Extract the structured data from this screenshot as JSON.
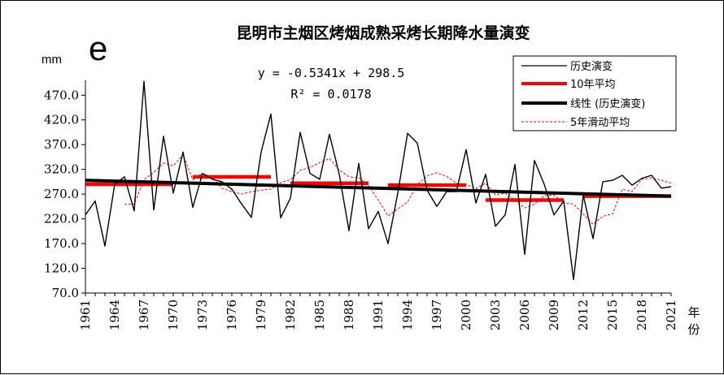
{
  "chart_data": {
    "type": "line",
    "title": "昆明市主烟区烤烟成熟采烤长期降水量演变",
    "panel_label": "e",
    "ylabel": "mm",
    "xlabel": "年份",
    "ylim": [
      70,
      500
    ],
    "yticks": [
      "470.0",
      "420.0",
      "370.0",
      "320.0",
      "270.0",
      "220.0",
      "170.0",
      "120.0",
      "70.0"
    ],
    "ytick_values": [
      470,
      420,
      370,
      320,
      270,
      220,
      170,
      120,
      70
    ],
    "xlim": [
      1961,
      2021
    ],
    "xticks": [
      "1961",
      "1964",
      "1967",
      "1970",
      "1973",
      "1976",
      "1979",
      "1982",
      "1985",
      "1988",
      "1991",
      "1994",
      "1997",
      "2000",
      "2003",
      "2006",
      "2009",
      "2012",
      "2015",
      "2018",
      "2021"
    ],
    "xtick_values": [
      1961,
      1964,
      1967,
      1970,
      1973,
      1976,
      1979,
      1982,
      1985,
      1988,
      1991,
      1994,
      1997,
      2000,
      2003,
      2006,
      2009,
      2012,
      2015,
      2018,
      2021
    ],
    "equation": "y = -0.5341x + 298.5",
    "r_squared": "R² = 0.0178",
    "trend": {
      "slope": -0.5341,
      "intercept": 298.5
    },
    "legend": {
      "history": "历史演变",
      "decade": "10年平均",
      "linear": "线性 (历史演变)",
      "moving": "5年滑动平均"
    },
    "series": [
      {
        "name": "历史演变",
        "color": "#000000",
        "x": [
          1961,
          1962,
          1963,
          1964,
          1965,
          1966,
          1967,
          1968,
          1969,
          1970,
          1971,
          1972,
          1973,
          1974,
          1975,
          1976,
          1977,
          1978,
          1979,
          1980,
          1981,
          1982,
          1983,
          1984,
          1985,
          1986,
          1987,
          1988,
          1989,
          1990,
          1991,
          1992,
          1993,
          1994,
          1995,
          1996,
          1997,
          1998,
          1999,
          2000,
          2001,
          2002,
          2003,
          2004,
          2005,
          2006,
          2007,
          2008,
          2009,
          2010,
          2011,
          2012,
          2013,
          2014,
          2015,
          2016,
          2017,
          2018,
          2019,
          2020,
          2021
        ],
        "values": [
          228,
          256,
          165,
          290,
          305,
          236,
          498,
          238,
          387,
          272,
          355,
          243,
          312,
          300,
          295,
          280,
          250,
          223,
          355,
          432,
          222,
          262,
          395,
          312,
          300,
          391,
          310,
          196,
          332,
          200,
          235,
          170,
          272,
          393,
          373,
          278,
          245,
          275,
          275,
          360,
          252,
          310,
          205,
          228,
          330,
          148,
          338,
          290,
          228,
          256,
          97,
          268,
          180,
          295,
          298,
          308,
          288,
          302,
          308,
          282,
          285
        ]
      },
      {
        "name": "5年滑动平均",
        "color": "#ff0000",
        "x": [
          1965,
          1966,
          1967,
          1968,
          1969,
          1970,
          1971,
          1972,
          1973,
          1974,
          1975,
          1976,
          1977,
          1978,
          1979,
          1980,
          1981,
          1982,
          1983,
          1984,
          1985,
          1986,
          1987,
          1988,
          1989,
          1990,
          1991,
          1992,
          1993,
          1994,
          1995,
          1996,
          1997,
          1998,
          1999,
          2000,
          2001,
          2002,
          2003,
          2004,
          2005,
          2006,
          2007,
          2008,
          2009,
          2010,
          2011,
          2012,
          2013,
          2014,
          2015,
          2016,
          2017,
          2018,
          2019,
          2020,
          2021
        ],
        "values": [
          249,
          250,
          299,
          314,
          333,
          327,
          350,
          299,
          312,
          304,
          282,
          275,
          270,
          275,
          278,
          280,
          293,
          299,
          318,
          324,
          334,
          342,
          319,
          305,
          303,
          287,
          258,
          226,
          240,
          254,
          289,
          307,
          313,
          306,
          292,
          290,
          281,
          292,
          268,
          272,
          258,
          242,
          250,
          267,
          268,
          252,
          250,
          230,
          209,
          225,
          230,
          280,
          275,
          300,
          303,
          298,
          292
        ]
      }
    ],
    "decade_means": [
      {
        "x0": 1961,
        "x1": 1970,
        "value": 290
      },
      {
        "x0": 1972,
        "x1": 1980,
        "value": 305
      },
      {
        "x0": 1982,
        "x1": 1990,
        "value": 292
      },
      {
        "x0": 1992,
        "x1": 2000,
        "value": 288
      },
      {
        "x0": 2002,
        "x1": 2010,
        "value": 258
      },
      {
        "x0": 2012,
        "x1": 2021,
        "value": 266
      }
    ],
    "grid": false,
    "legend_position": "top-right"
  }
}
